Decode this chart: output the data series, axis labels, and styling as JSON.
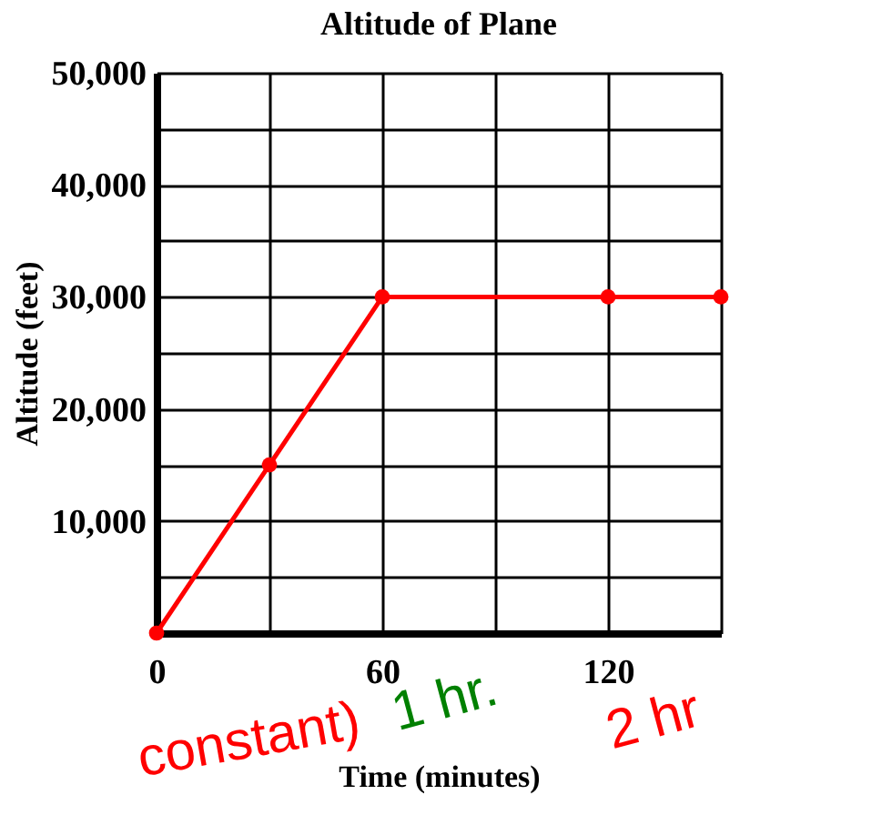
{
  "chart_data": {
    "type": "line",
    "title": "Altitude of Plane",
    "xlabel": "Time (minutes)",
    "ylabel": "Altitude (feet)",
    "x": [
      0,
      30,
      60,
      120,
      150
    ],
    "series": [
      {
        "color": "#ff0000",
        "values": [
          0,
          15000,
          30000,
          30000,
          30000
        ]
      }
    ],
    "xlim": [
      0,
      150
    ],
    "xticks": [
      0,
      {
        "value": 30,
        "label": null
      },
      60,
      {
        "value": 90,
        "label": null
      },
      120,
      {
        "value": 150,
        "label": null
      }
    ],
    "ylim": [
      0,
      50000
    ],
    "yticks": [
      {
        "value": 0,
        "label": null
      },
      {
        "value": 5000,
        "label": null
      },
      {
        "value": 10000,
        "label": "10,000"
      },
      {
        "value": 15000,
        "label": null
      },
      {
        "value": 20000,
        "label": "20,000"
      },
      {
        "value": 25000,
        "label": null
      },
      {
        "value": 30000,
        "label": "30,000"
      },
      {
        "value": 35000,
        "label": null
      },
      {
        "value": 40000,
        "label": "40,000"
      },
      {
        "value": 45000,
        "label": null
      },
      {
        "value": 50000,
        "label": "50,000"
      }
    ],
    "grid": true,
    "marker": "circle",
    "line_style": "solid",
    "annotations": [
      "constant)",
      "1 hr.",
      "2 hr"
    ]
  }
}
